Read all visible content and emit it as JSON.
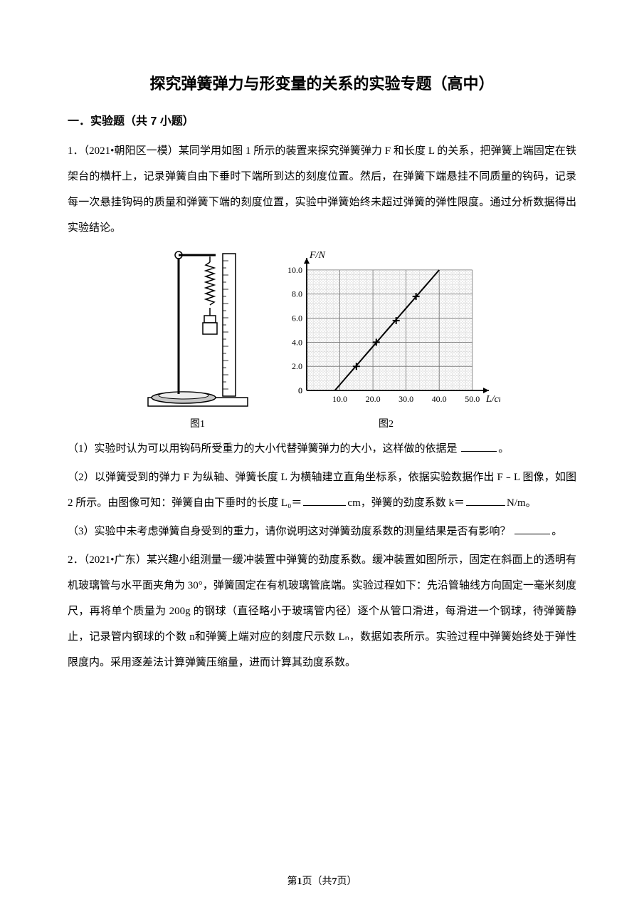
{
  "title": "探究弹簧弹力与形变量的关系的实验专题（高中）",
  "section_header": "一．实验题（共 7 小题）",
  "q1": {
    "prefix": "1．（2021•朝阳区一模）某同学用如图 1 所示的装置来探究弹簧弹力 F 和长度 L 的关系，把弹簧上端固定在铁架台的横杆上，记录弹簧自由下垂时下端所到达的刻度位置。然后，在弹簧下端悬挂不同质量的钩码，记录每一次悬挂钩码的质量和弹簧下端的刻度位置，实验中弹簧始终未超过弹簧的弹性限度。通过分析数据得出实验结论。",
    "fig1_caption": "图1",
    "fig2_caption": "图2",
    "sub1": "（1）实验时认为可以用钩码所受重力的大小代替弹簧弹力的大小，这样做的依据是",
    "sub1_end": "。",
    "sub2a": "（2）以弹簧受到的弹力 F 为纵轴、弹簧长度 L 为横轴建立直角坐标系，依据实验数据作出 F﹣L 图像，如图 2 所示。由图像可知：弹簧自由下垂时的长度 L₀＝",
    "sub2b": "cm，弹簧的劲度系数 k＝",
    "sub2c": "N/m。",
    "sub3a": "（3）实验中未考虑弹簧自身受到的重力，请你说明这对弹簧劲度系数的测量结果是否有影响？",
    "sub3b": "。"
  },
  "q2": {
    "text": "2．（2021•广东）某兴趣小组测量一缓冲装置中弹簧的劲度系数。缓冲装置如图所示，固定在斜面上的透明有机玻璃管与水平面夹角为 30°，弹簧固定在有机玻璃管底端。实验过程如下：先沿管轴线方向固定一毫米刻度尺，再将单个质量为 200g 的钢球（直径略小于玻璃管内径）逐个从管口滑进，每滑进一个钢球，待弹簧静止，记录管内钢球的个数 n和弹簧上端对应的刻度尺示数 Lₙ，数据如表所示。实验过程中弹簧始终处于弹性限度内。采用逐差法计算弹簧压缩量，进而计算其劲度系数。"
  },
  "chart": {
    "type": "line",
    "y_label": "F/N",
    "x_label": "L/cm",
    "y_ticks": [
      "0",
      "2.0",
      "4.0",
      "6.0",
      "8.0",
      "10.0"
    ],
    "x_ticks": [
      "10.0",
      "20.0",
      "30.0",
      "40.0",
      "50.0"
    ],
    "xlim": [
      0,
      55
    ],
    "ylim": [
      0,
      11
    ],
    "major_grid": 5,
    "minor_grid": 1,
    "line_color": "#000000",
    "grid_color": "#000000",
    "hatch_color": "#b8b8b8",
    "background": "#ffffff",
    "data_points": [
      {
        "x": 15,
        "y": 2.0
      },
      {
        "x": 21,
        "y": 4.0
      },
      {
        "x": 27,
        "y": 5.8
      },
      {
        "x": 33,
        "y": 7.8
      }
    ],
    "line_x_intercept": 8.5,
    "line_end": {
      "x": 40,
      "y": 10
    }
  },
  "footer": {
    "a": "第",
    "b": "1",
    "c": "页（共",
    "d": "7",
    "e": "页）"
  }
}
